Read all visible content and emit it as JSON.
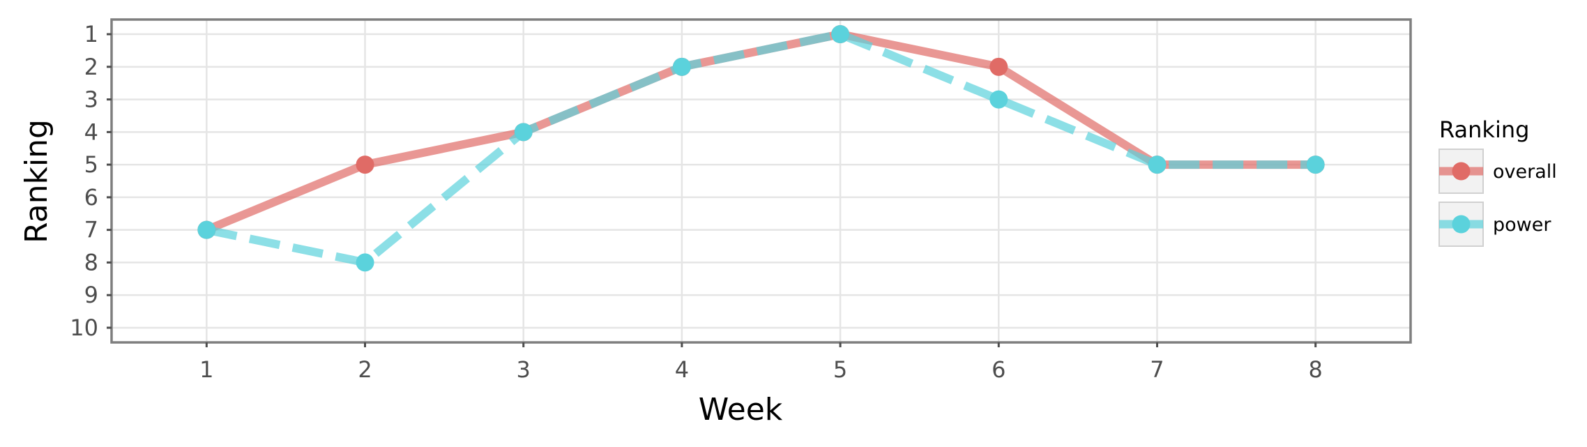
{
  "chart_data": {
    "type": "line",
    "title": "",
    "xlabel": "Week",
    "ylabel": "Ranking",
    "x": [
      1,
      2,
      3,
      4,
      5,
      6,
      7,
      8
    ],
    "xticks": [
      "1",
      "2",
      "3",
      "4",
      "5",
      "6",
      "7",
      "8"
    ],
    "yticks": [
      "1",
      "2",
      "3",
      "4",
      "5",
      "6",
      "7",
      "8",
      "9",
      "10"
    ],
    "xlim": [
      0.4,
      8.6
    ],
    "ylim": [
      10.45,
      0.55
    ],
    "y_reversed": true,
    "grid": true,
    "legend": {
      "title": "Ranking",
      "position": "right"
    },
    "series": [
      {
        "name": "overall",
        "values": [
          7,
          5,
          4,
          2,
          1,
          2,
          5,
          5
        ],
        "color": "#E06B66",
        "line_style": "solid"
      },
      {
        "name": "power",
        "values": [
          7,
          8,
          4,
          2,
          1,
          3,
          5,
          5
        ],
        "color": "#5BD2DC",
        "line_style": "dashed"
      }
    ]
  }
}
